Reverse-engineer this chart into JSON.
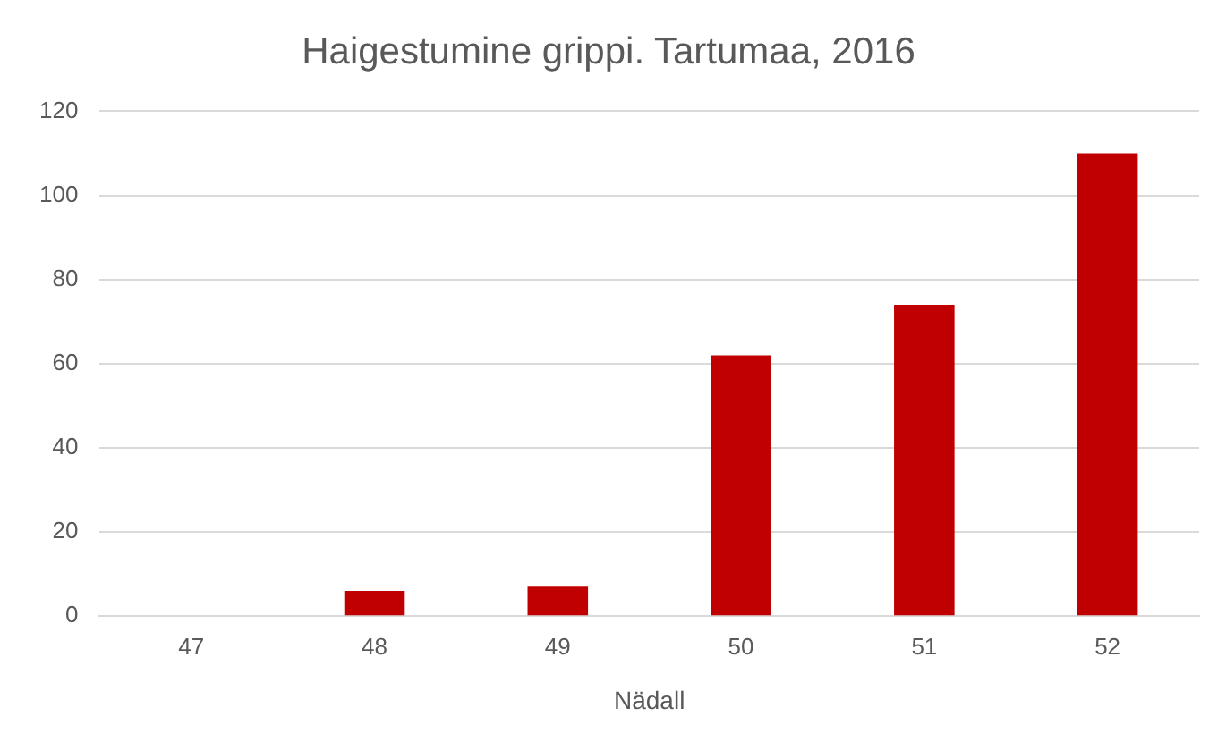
{
  "chart_data": {
    "type": "bar",
    "title": "Haigestumine grippi. Tartumaa, 2016",
    "xlabel": "Nädall",
    "categories": [
      "47",
      "48",
      "49",
      "50",
      "51",
      "52"
    ],
    "values": [
      0,
      6,
      7,
      62,
      74,
      110
    ],
    "color": "#c00000",
    "ylim": [
      0,
      120
    ],
    "yticks": [
      0,
      20,
      40,
      60,
      80,
      100,
      120
    ],
    "grid": "y"
  }
}
